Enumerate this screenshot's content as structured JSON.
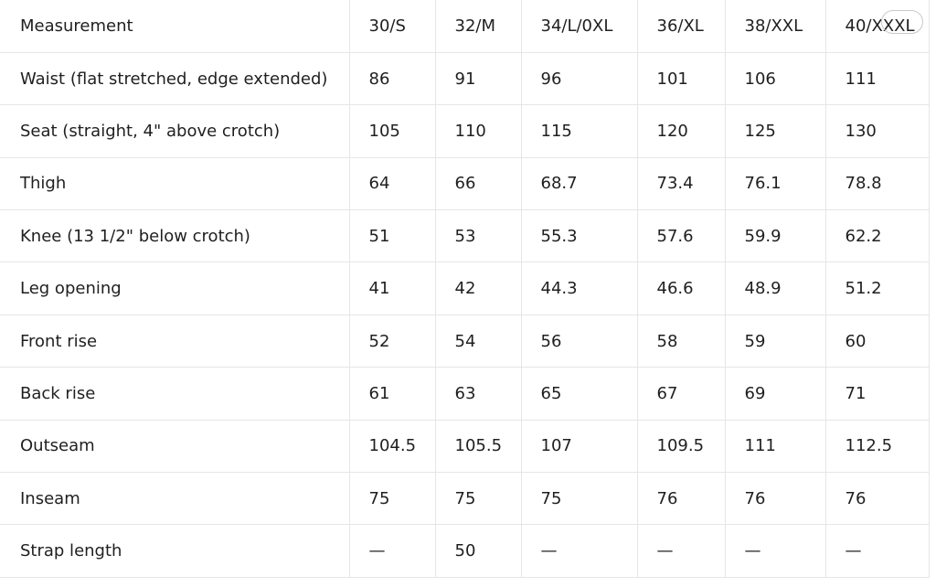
{
  "table": {
    "header": [
      "Measurement",
      "30/S",
      "32/M",
      "34/L/0XL",
      "36/XL",
      "38/XXL",
      "40/XXXL"
    ],
    "rows": [
      [
        "Waist (flat stretched, edge extended)",
        "86",
        "91",
        "96",
        "101",
        "106",
        "111"
      ],
      [
        "Seat (straight, 4\" above crotch)",
        "105",
        "110",
        "115",
        "120",
        "125",
        "130"
      ],
      [
        "Thigh",
        "64",
        "66",
        "68.7",
        "73.4",
        "76.1",
        "78.8"
      ],
      [
        "Knee (13 1/2\" below crotch)",
        "51",
        "53",
        "55.3",
        "57.6",
        "59.9",
        "62.2"
      ],
      [
        "Leg opening",
        "41",
        "42",
        "44.3",
        "46.6",
        "48.9",
        "51.2"
      ],
      [
        "Front rise",
        "52",
        "54",
        "56",
        "58",
        "59",
        "60"
      ],
      [
        "Back rise",
        "61",
        "63",
        "65",
        "67",
        "69",
        "71"
      ],
      [
        "Outseam",
        "104.5",
        "105.5",
        "107",
        "109.5",
        "111",
        "112.5"
      ],
      [
        "Inseam",
        "75",
        "75",
        "75",
        "76",
        "76",
        "76"
      ],
      [
        "Strap length",
        "—",
        "50",
        "—",
        "—",
        "—",
        "—"
      ]
    ]
  }
}
